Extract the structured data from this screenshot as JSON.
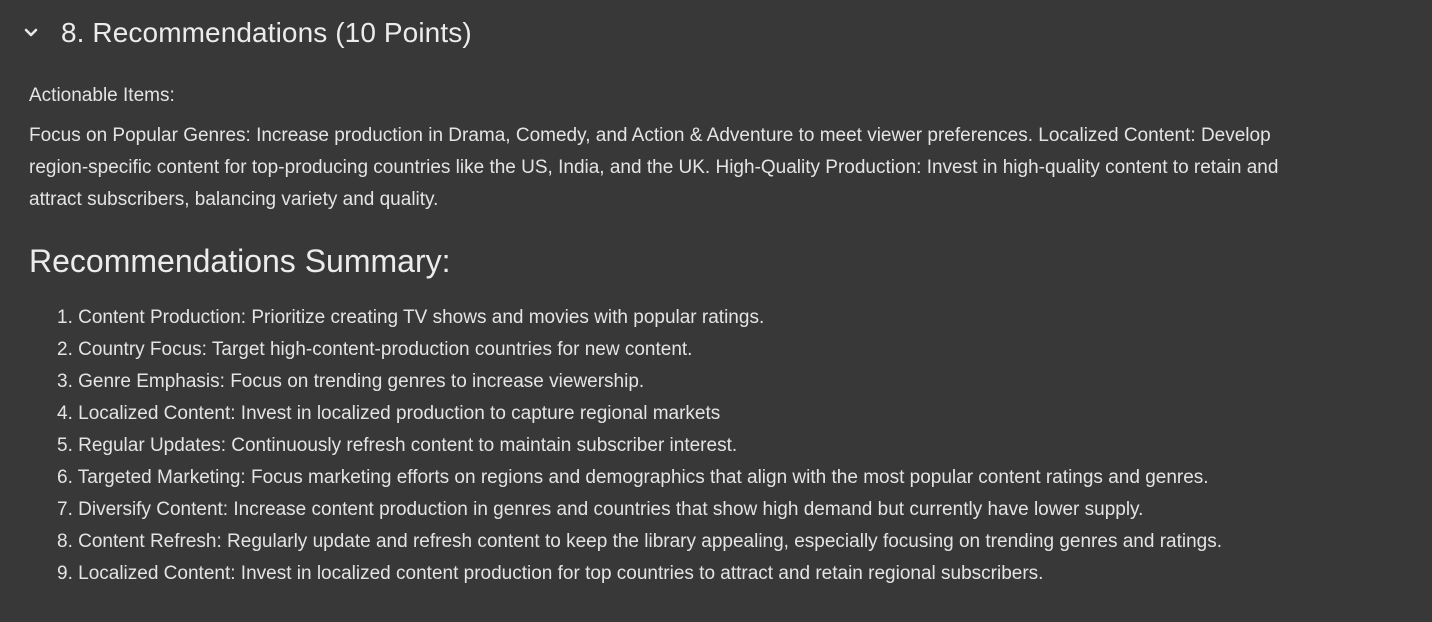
{
  "section": {
    "title": "8. Recommendations (10 Points)",
    "chevron_icon": "chevron-down-icon"
  },
  "actionable": {
    "label": "Actionable Items:",
    "paragraph": "Focus on Popular Genres: Increase production in Drama, Comedy, and Action & Adventure to meet viewer preferences. Localized Content: Develop region-specific content for top-producing countries like the US, India, and the UK. High-Quality Production: Invest in high-quality content to retain and attract subscribers, balancing variety and quality."
  },
  "summary": {
    "heading": "Recommendations Summary:",
    "items": [
      "1. Content Production: Prioritize creating TV shows and movies with popular ratings.",
      "2. Country Focus: Target high-content-production countries for new content.",
      "3. Genre Emphasis: Focus on trending genres to increase viewership.",
      "4. Localized Content: Invest in localized production to capture regional markets",
      "5. Regular Updates: Continuously refresh content to maintain subscriber interest.",
      "6. Targeted Marketing: Focus marketing efforts on regions and demographics that align with the most popular content ratings and genres.",
      "7. Diversify Content: Increase content production in genres and countries that show high demand but currently have lower supply.",
      "8. Content Refresh: Regularly update and refresh content to keep the library appealing, especially focusing on trending genres and ratings.",
      "9. Localized Content: Invest in localized content production for top countries to attract and retain regional subscribers."
    ]
  }
}
